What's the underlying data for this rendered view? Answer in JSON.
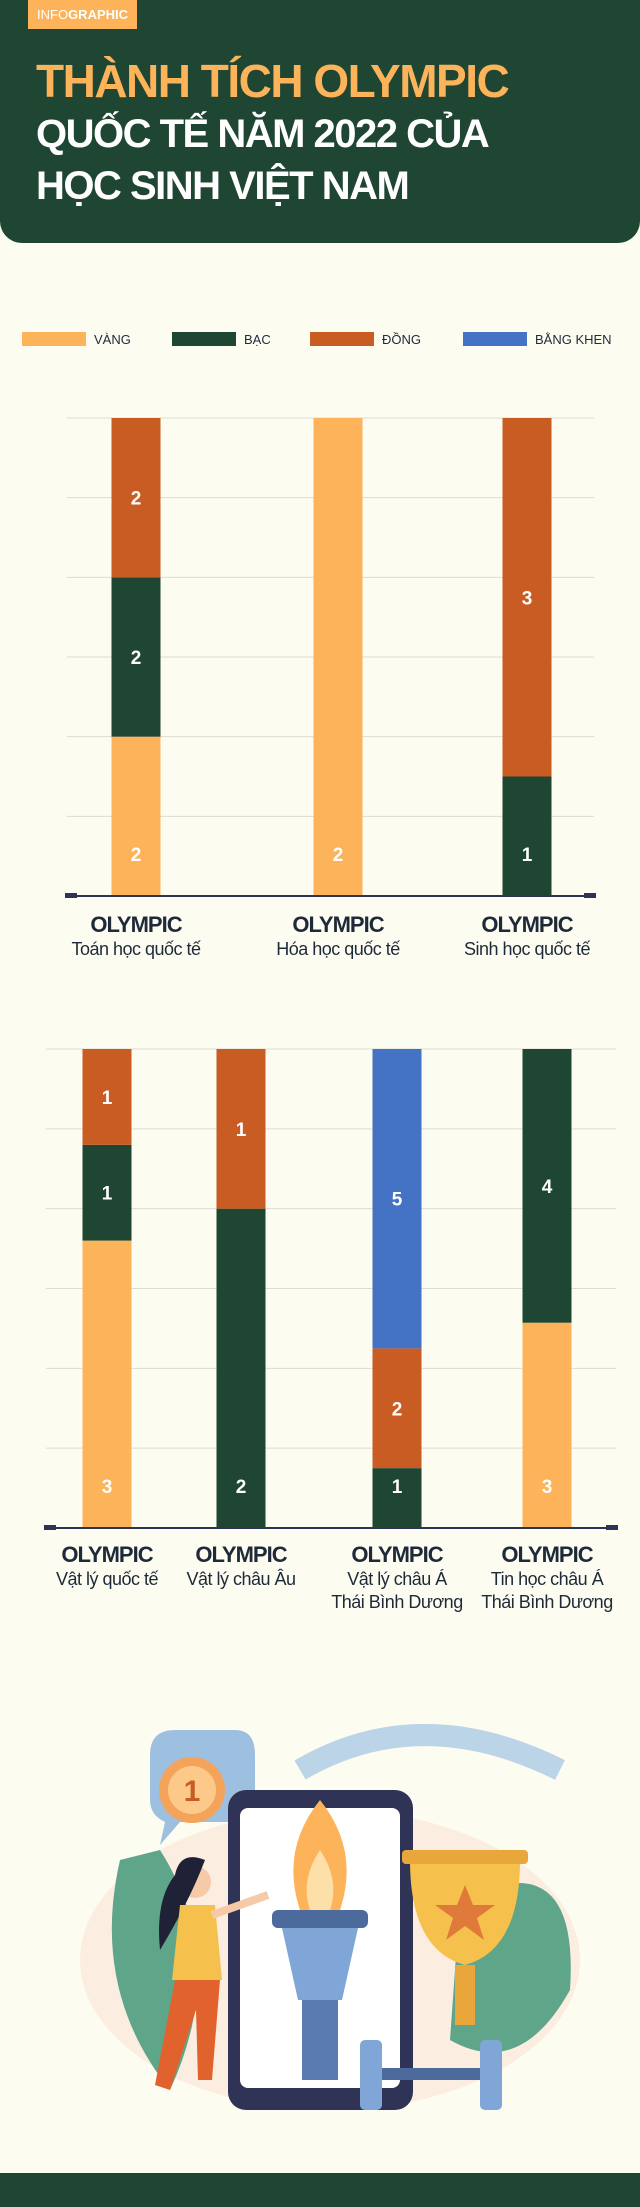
{
  "header": {
    "tag": [
      "INFO",
      "GRAPHIC"
    ],
    "title_lines": [
      "THÀNH TÍCH OLYMPIC",
      "QUỐC TẾ NĂM 2022 CỦA",
      "HỌC SINH VIỆT NAM"
    ]
  },
  "chart_data": [
    {
      "type": "bar",
      "stacked": true,
      "normalized": true,
      "grid": true,
      "category_prefix": "OLYMPIC",
      "categories": [
        "Toán học quốc tế",
        "Hóa học quốc tế",
        "Sinh học quốc tế"
      ],
      "series": [
        {
          "color": "#fdb35a",
          "values": [
            2,
            2,
            null
          ]
        },
        {
          "color": "#1e4632",
          "values": [
            2,
            null,
            1
          ]
        },
        {
          "color": "#c85c22",
          "values": [
            2,
            null,
            3
          ]
        }
      ]
    },
    {
      "type": "bar",
      "stacked": true,
      "normalized": true,
      "grid": true,
      "category_prefix": "OLYMPIC",
      "categories": [
        "Vật lý quốc tế",
        "Vật lý châu Âu",
        "Vật lý châu Á\nThái Bình Dương",
        "Tin học châu Á\nThái Bình Dương"
      ],
      "series": [
        {
          "name": "VÀNG",
          "color": "#fdb35a",
          "values": [
            3,
            null,
            null,
            3
          ]
        },
        {
          "name": "BẠC",
          "color": "#1e4632",
          "values": [
            1,
            2,
            1,
            4
          ]
        },
        {
          "name": "ĐỒNG",
          "color": "#c85c22",
          "values": [
            1,
            1,
            2,
            null
          ]
        },
        {
          "name": "BẰNG KHEN",
          "color": "#4472c4",
          "values": [
            null,
            null,
            5,
            null
          ]
        }
      ]
    }
  ],
  "illustration": {
    "medal_label": "1"
  }
}
